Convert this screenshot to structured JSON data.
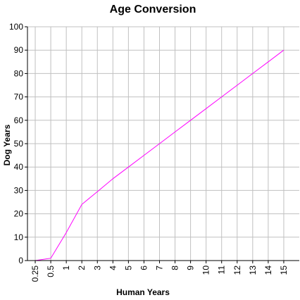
{
  "chart_data": {
    "type": "line",
    "title": "Age Conversion",
    "xlabel": "Human Years",
    "ylabel": "Dog Years",
    "categories": [
      "0.25",
      "0.5",
      "1",
      "2",
      "3",
      "4",
      "5",
      "6",
      "7",
      "8",
      "9",
      "10",
      "11",
      "12",
      "13",
      "14",
      "15"
    ],
    "series": [
      {
        "values": [
          0,
          1,
          12,
          24,
          29.5,
          35,
          40,
          45,
          50,
          55,
          60,
          65,
          70,
          75,
          80,
          85,
          90
        ],
        "color": "#ff00ff"
      }
    ],
    "ylim": [
      0,
      100
    ],
    "yticks": [
      "0",
      "10",
      "20",
      "30",
      "40",
      "50",
      "60",
      "70",
      "80",
      "90",
      "100"
    ],
    "grid": true,
    "x_grid": "vertical at each category",
    "legend": "none"
  }
}
